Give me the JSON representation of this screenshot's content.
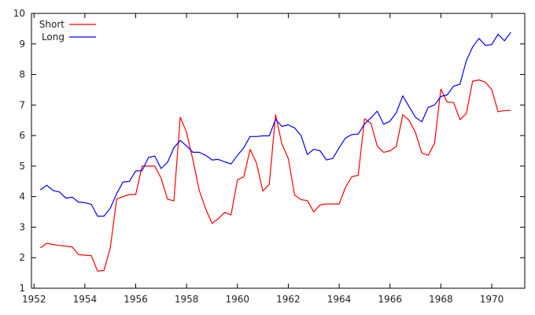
{
  "chart_data": {
    "type": "line",
    "title": "",
    "xlabel": "",
    "ylabel": "",
    "xlim": [
      1951.9,
      1971.3
    ],
    "ylim": [
      1,
      10
    ],
    "grid": false,
    "legend_position": "top-left",
    "x_ticks": [
      1952,
      1954,
      1956,
      1958,
      1960,
      1962,
      1964,
      1966,
      1968,
      1970
    ],
    "x_tick_labels": [
      "1952",
      "1954",
      "1956",
      "1958",
      "1960",
      "1962",
      "1964",
      "1966",
      "1968",
      "1970"
    ],
    "y_ticks": [
      1,
      2,
      3,
      4,
      5,
      6,
      7,
      8,
      9,
      10
    ],
    "y_tick_labels": [
      "1",
      "2",
      "3",
      "4",
      "5",
      "6",
      "7",
      "8",
      "9",
      "10"
    ],
    "series": [
      {
        "name": "Short",
        "color": "#ff0000",
        "points": [
          [
            1952.25,
            2.32
          ],
          [
            1952.5,
            2.47
          ],
          [
            1952.75,
            2.43
          ],
          [
            1953.0,
            2.4
          ],
          [
            1953.25,
            2.38
          ],
          [
            1953.5,
            2.35
          ],
          [
            1953.75,
            2.1
          ],
          [
            1954.0,
            2.08
          ],
          [
            1954.25,
            2.07
          ],
          [
            1954.5,
            1.56
          ],
          [
            1954.75,
            1.58
          ],
          [
            1955.0,
            2.32
          ],
          [
            1955.25,
            3.92
          ],
          [
            1955.5,
            4.0
          ],
          [
            1955.75,
            4.07
          ],
          [
            1956.0,
            4.07
          ],
          [
            1956.25,
            5.0
          ],
          [
            1956.5,
            5.0
          ],
          [
            1956.75,
            5.0
          ],
          [
            1957.0,
            4.6
          ],
          [
            1957.25,
            3.92
          ],
          [
            1957.5,
            3.86
          ],
          [
            1957.75,
            6.6
          ],
          [
            1958.0,
            6.1
          ],
          [
            1958.25,
            5.2
          ],
          [
            1958.5,
            4.2
          ],
          [
            1958.75,
            3.6
          ],
          [
            1959.0,
            3.12
          ],
          [
            1959.25,
            3.28
          ],
          [
            1959.5,
            3.48
          ],
          [
            1959.75,
            3.4
          ],
          [
            1960.0,
            4.55
          ],
          [
            1960.25,
            4.65
          ],
          [
            1960.5,
            5.55
          ],
          [
            1960.75,
            5.1
          ],
          [
            1961.0,
            4.18
          ],
          [
            1961.25,
            4.4
          ],
          [
            1961.5,
            6.68
          ],
          [
            1961.75,
            5.72
          ],
          [
            1962.0,
            5.25
          ],
          [
            1962.25,
            4.05
          ],
          [
            1962.5,
            3.9
          ],
          [
            1962.75,
            3.87
          ],
          [
            1963.0,
            3.5
          ],
          [
            1963.25,
            3.73
          ],
          [
            1963.5,
            3.76
          ],
          [
            1963.75,
            3.76
          ],
          [
            1964.0,
            3.76
          ],
          [
            1964.25,
            4.3
          ],
          [
            1964.5,
            4.65
          ],
          [
            1964.75,
            4.7
          ],
          [
            1965.0,
            6.55
          ],
          [
            1965.25,
            6.4
          ],
          [
            1965.5,
            5.65
          ],
          [
            1965.75,
            5.45
          ],
          [
            1966.0,
            5.5
          ],
          [
            1966.25,
            5.65
          ],
          [
            1966.5,
            6.68
          ],
          [
            1966.75,
            6.5
          ],
          [
            1967.0,
            6.1
          ],
          [
            1967.25,
            5.43
          ],
          [
            1967.5,
            5.35
          ],
          [
            1967.75,
            5.75
          ],
          [
            1968.0,
            7.52
          ],
          [
            1968.25,
            7.1
          ],
          [
            1968.5,
            7.08
          ],
          [
            1968.75,
            6.52
          ],
          [
            1969.0,
            6.72
          ],
          [
            1969.25,
            7.78
          ],
          [
            1969.5,
            7.82
          ],
          [
            1969.75,
            7.75
          ],
          [
            1970.0,
            7.5
          ],
          [
            1970.25,
            6.78
          ],
          [
            1970.5,
            6.82
          ],
          [
            1970.75,
            6.82
          ]
        ]
      },
      {
        "name": "Long",
        "color": "#0000ff",
        "points": [
          [
            1952.25,
            4.22
          ],
          [
            1952.5,
            4.37
          ],
          [
            1952.75,
            4.2
          ],
          [
            1953.0,
            4.15
          ],
          [
            1953.25,
            3.95
          ],
          [
            1953.5,
            3.98
          ],
          [
            1953.75,
            3.82
          ],
          [
            1954.0,
            3.8
          ],
          [
            1954.25,
            3.75
          ],
          [
            1954.5,
            3.36
          ],
          [
            1954.75,
            3.36
          ],
          [
            1955.0,
            3.62
          ],
          [
            1955.25,
            4.1
          ],
          [
            1955.5,
            4.48
          ],
          [
            1955.75,
            4.5
          ],
          [
            1956.0,
            4.84
          ],
          [
            1956.25,
            4.85
          ],
          [
            1956.5,
            5.28
          ],
          [
            1956.75,
            5.33
          ],
          [
            1957.0,
            4.92
          ],
          [
            1957.25,
            5.12
          ],
          [
            1957.5,
            5.6
          ],
          [
            1957.75,
            5.84
          ],
          [
            1958.0,
            5.66
          ],
          [
            1958.25,
            5.45
          ],
          [
            1958.5,
            5.45
          ],
          [
            1958.75,
            5.35
          ],
          [
            1959.0,
            5.2
          ],
          [
            1959.25,
            5.22
          ],
          [
            1959.5,
            5.14
          ],
          [
            1959.75,
            5.07
          ],
          [
            1960.0,
            5.35
          ],
          [
            1960.25,
            5.6
          ],
          [
            1960.5,
            5.97
          ],
          [
            1960.75,
            5.97
          ],
          [
            1961.0,
            5.99
          ],
          [
            1961.25,
            5.99
          ],
          [
            1961.5,
            6.53
          ],
          [
            1961.75,
            6.3
          ],
          [
            1962.0,
            6.35
          ],
          [
            1962.25,
            6.25
          ],
          [
            1962.5,
            6.0
          ],
          [
            1962.75,
            5.38
          ],
          [
            1963.0,
            5.55
          ],
          [
            1963.25,
            5.5
          ],
          [
            1963.5,
            5.2
          ],
          [
            1963.75,
            5.25
          ],
          [
            1964.0,
            5.6
          ],
          [
            1964.25,
            5.92
          ],
          [
            1964.5,
            6.03
          ],
          [
            1964.75,
            6.05
          ],
          [
            1965.0,
            6.38
          ],
          [
            1965.25,
            6.58
          ],
          [
            1965.5,
            6.8
          ],
          [
            1965.75,
            6.37
          ],
          [
            1966.0,
            6.47
          ],
          [
            1966.25,
            6.75
          ],
          [
            1966.5,
            7.3
          ],
          [
            1966.75,
            6.95
          ],
          [
            1967.0,
            6.6
          ],
          [
            1967.25,
            6.45
          ],
          [
            1967.5,
            6.92
          ],
          [
            1967.75,
            7.0
          ],
          [
            1968.0,
            7.28
          ],
          [
            1968.25,
            7.33
          ],
          [
            1968.5,
            7.62
          ],
          [
            1968.75,
            7.68
          ],
          [
            1969.0,
            8.45
          ],
          [
            1969.25,
            8.9
          ],
          [
            1969.5,
            9.18
          ],
          [
            1969.75,
            8.95
          ],
          [
            1970.0,
            8.98
          ],
          [
            1970.25,
            9.32
          ],
          [
            1970.5,
            9.1
          ],
          [
            1970.75,
            9.38
          ]
        ]
      }
    ]
  }
}
